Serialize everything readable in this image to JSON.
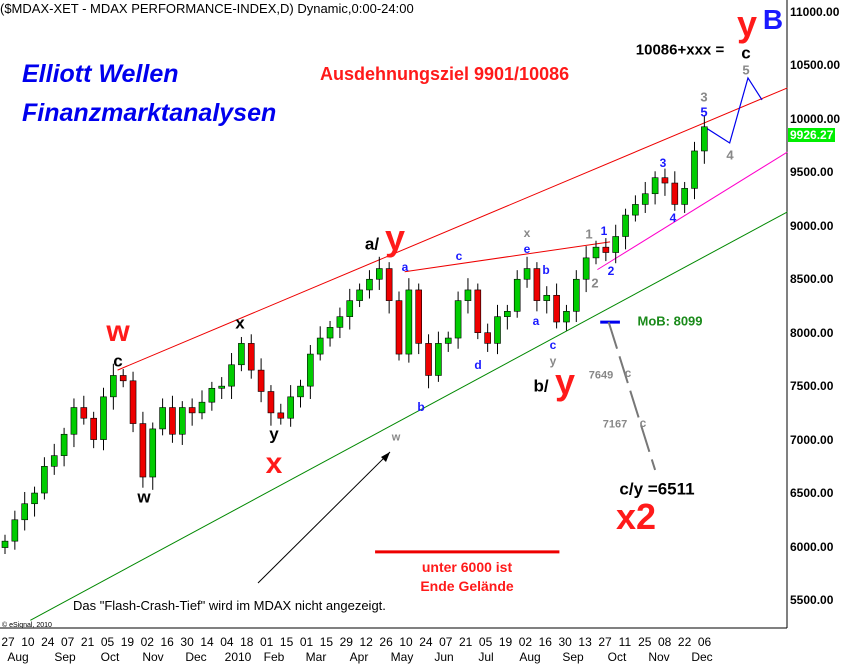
{
  "header": {
    "title": "($MDAX-XET - MDAX PERFORMANCE-INDEX,D) Dynamic,0:00-24:00"
  },
  "branding": {
    "line1": "Elliott Wellen",
    "line2": "Finanzmarktanalysen",
    "copyright": "© eSignal, 2010"
  },
  "chart_data": {
    "type": "candlestick",
    "title": "($MDAX-XET - MDAX PERFORMANCE-INDEX,D) Dynamic,0:00-24:00",
    "ylim": [
      5300,
      11100
    ],
    "yticks": [
      "11000.00",
      "10500.00",
      "10000.00",
      "9500.00",
      "9000.00",
      "8500.00",
      "8000.00",
      "7500.00",
      "7000.00",
      "6500.00",
      "6000.00",
      "5500.00"
    ],
    "last_price": "9926.27",
    "x_day_labels": [
      "27",
      "10",
      "24",
      "07",
      "21",
      "05",
      "19",
      "02",
      "16",
      "30",
      "14",
      "04",
      "18",
      "01",
      "15",
      "01",
      "15",
      "29",
      "12",
      "26",
      "10",
      "24",
      "07",
      "21",
      "05",
      "19",
      "02",
      "16",
      "30",
      "13",
      "27",
      "11",
      "25",
      "08",
      "22",
      "06"
    ],
    "x_month_labels": [
      "Aug",
      "Sep",
      "Oct",
      "Nov",
      "Dec",
      "2010",
      "Feb",
      "Mar",
      "Apr",
      "May",
      "Jun",
      "Jul",
      "Aug",
      "Sep",
      "Oct",
      "Nov",
      "Dec"
    ],
    "start_date": "2009-07-27",
    "weekly_close": [
      6050,
      6250,
      6400,
      6500,
      6750,
      6850,
      7050,
      7300,
      7200,
      7000,
      7400,
      7600,
      7550,
      7150,
      6650,
      7100,
      7300,
      7050,
      7300,
      7250,
      7350,
      7480,
      7500,
      7700,
      7900,
      7650,
      7450,
      7250,
      7200,
      7400,
      7500,
      7800,
      7950,
      8050,
      8150,
      8300,
      8400,
      8500,
      8600,
      8300,
      7800,
      8400,
      7900,
      7600,
      7900,
      7950,
      8300,
      8400,
      8000,
      7900,
      8150,
      8200,
      8500,
      8600,
      8300,
      8350,
      8100,
      8200,
      8500,
      8700,
      8800,
      8750,
      8900,
      9100,
      9200,
      9300,
      9450,
      9400,
      9200,
      9350,
      9700,
      9926.27
    ],
    "colors": {
      "up": "#00cc00",
      "down": "#ee0000",
      "last_price_bg": "#00ee00"
    },
    "trendlines": [
      {
        "name": "upper-channel",
        "color": "#ee0000",
        "from": [
          "2009-10-15",
          7650
        ],
        "to": [
          "2011-02-03",
          10290
        ]
      },
      {
        "name": "lower-channel",
        "color": "#008800",
        "from": [
          "2009-08-14",
          5310
        ],
        "to": [
          "2011-02-03",
          9130
        ]
      },
      {
        "name": "triangle-top",
        "color": "#ee0000",
        "from": [
          "2010-05-07",
          8570
        ],
        "to": [
          "2010-09-30",
          8850
        ]
      },
      {
        "name": "inner-channel",
        "color": "#ff00cc",
        "from": [
          "2010-09-21",
          8590
        ],
        "to": [
          "2011-02-03",
          9690
        ]
      },
      {
        "name": "mob-level",
        "color": "#0000ee",
        "from": [
          "2010-09-23",
          8099
        ],
        "to": [
          "2010-10-07",
          8099
        ]
      },
      {
        "name": "limit-6000",
        "color": "#ee0000",
        "from": [
          "2010-04-16",
          5950
        ],
        "to": [
          "2010-08-25",
          5950
        ]
      }
    ],
    "projection_up": {
      "color": "#0000ee",
      "points": [
        [
          "2010-12-06",
          9926
        ],
        [
          "2010-12-24",
          9775
        ],
        [
          "2011-01-06",
          10383
        ],
        [
          "2011-01-16",
          10177
        ]
      ]
    },
    "projection_down": {
      "color": "#777777",
      "points": [
        [
          "2010-09-29",
          8100
        ],
        [
          "2010-11-01",
          6716
        ]
      ]
    }
  },
  "annotations": {
    "ausdehnungsziel": "Ausdehnungsziel 9901/10086",
    "target": "10086+xxx =",
    "yB_y": "y",
    "yB_B": "B",
    "top_c": "c",
    "top_5": "5",
    "g3": "3",
    "b5": "5",
    "g4": "4",
    "w_red": "w",
    "c_w": "c",
    "x_blk": "x",
    "w_blk": "w",
    "y_blk": "y",
    "x_red": "x",
    "a_slash": "a/",
    "a_y": "y",
    "ba": "a",
    "bc": "c",
    "bb": "b",
    "bd": "d",
    "be": "e",
    "gx": "x",
    "bb2": "b",
    "ba2": "a",
    "bc2": "c",
    "gy": "y",
    "b_slash": "b/",
    "b_y": "y",
    "g1": "1",
    "b1": "1",
    "g2": "2",
    "b2": "2",
    "b3": "3",
    "b4": "4",
    "mob": "MoB: 8099",
    "p7649": "7649",
    "c7649": "c",
    "p7167": "7167",
    "c7167": "c",
    "cy": "c/y =6511",
    "x2": "x2",
    "gw": "w",
    "limit1": "unter 6000 ist",
    "limit2": "Ende Gelände",
    "flash": "Das \"Flash-Crash-Tief\" wird im MDAX nicht angezeigt."
  }
}
